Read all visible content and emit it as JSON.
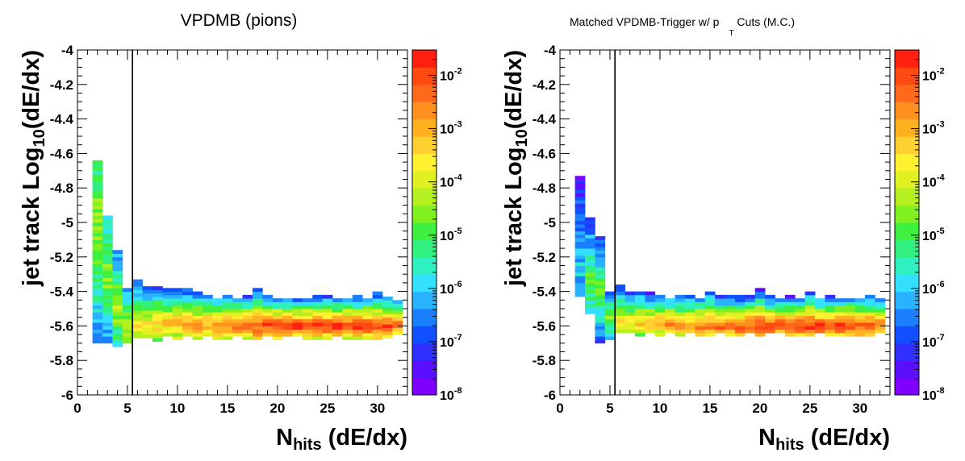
{
  "chart_data": [
    {
      "type": "heatmap",
      "title": "VPDMB (pions)",
      "xlabel": {
        "main": "N",
        "sub": "hits",
        "rest": " (dE/dx)"
      },
      "ylabel": {
        "main": "jet track Log",
        "sub": "10",
        "rest": "(dE/dx)"
      },
      "xlim": [
        0,
        33
      ],
      "ylim": [
        -6,
        -4
      ],
      "x_ticks": [
        "0",
        "5",
        "10",
        "15",
        "20",
        "25",
        "30"
      ],
      "y_ticks": [
        "-6",
        "-5.8",
        "-5.6",
        "-5.4",
        "-5.2",
        "-5",
        "-4.8",
        "-4.6",
        "-4.4",
        "-4.2",
        "-4"
      ],
      "z_scale": "log",
      "z_range": [
        1e-08,
        0.03
      ],
      "colorbar_labels": [
        {
          "base": "10",
          "exp": "-2"
        },
        {
          "base": "10",
          "exp": "-3"
        },
        {
          "base": "10",
          "exp": "-4"
        },
        {
          "base": "10",
          "exp": "-5"
        },
        {
          "base": "10",
          "exp": "-6"
        },
        {
          "base": "10",
          "exp": "-7"
        },
        {
          "base": "10",
          "exp": "-8"
        }
      ],
      "cut_line_x": 5.5,
      "columns": [
        {
          "x": 2,
          "ymin": -5.72,
          "ymax": -4.62,
          "peak_y": -5.0,
          "peak_log": -4.3,
          "low_log": -6.6
        },
        {
          "x": 3,
          "ymin": -5.72,
          "ymax": -4.96,
          "peak_y": -5.3,
          "peak_log": -4.4,
          "low_log": -6.6
        },
        {
          "x": 4,
          "ymin": -5.72,
          "ymax": -5.14,
          "peak_y": -5.5,
          "peak_log": -4.1,
          "low_log": -6.8
        },
        {
          "x": 5,
          "ymin": -5.72,
          "ymax": -5.36,
          "peak_y": -5.6,
          "peak_log": -3.9,
          "low_log": -6.8
        },
        {
          "x": 6,
          "ymin": -5.69,
          "ymax": -5.34,
          "peak_y": -5.6,
          "peak_log": -3.7,
          "low_log": -6.8
        },
        {
          "x": 7,
          "ymin": -5.69,
          "ymax": -5.35,
          "peak_y": -5.6,
          "peak_log": -3.5,
          "low_log": -6.9
        },
        {
          "x": 8,
          "ymin": -5.69,
          "ymax": -5.36,
          "peak_y": -5.59,
          "peak_log": -3.2,
          "low_log": -7.0
        },
        {
          "x": 9,
          "ymin": -5.68,
          "ymax": -5.37,
          "peak_y": -5.59,
          "peak_log": -3.1,
          "low_log": -7.0
        },
        {
          "x": 10,
          "ymin": -5.68,
          "ymax": -5.37,
          "peak_y": -5.59,
          "peak_log": -2.9,
          "low_log": -7.1
        },
        {
          "x": 11,
          "ymin": -5.68,
          "ymax": -5.38,
          "peak_y": -5.59,
          "peak_log": -2.75,
          "low_log": -7.2
        },
        {
          "x": 12,
          "ymin": -5.68,
          "ymax": -5.38,
          "peak_y": -5.6,
          "peak_log": -2.65,
          "low_log": -7.2
        },
        {
          "x": 13,
          "ymin": -5.68,
          "ymax": -5.4,
          "peak_y": -5.6,
          "peak_log": -2.55,
          "low_log": -7.2
        },
        {
          "x": 14,
          "ymin": -5.68,
          "ymax": -5.41,
          "peak_y": -5.6,
          "peak_log": -2.45,
          "low_log": -7.2
        },
        {
          "x": 15,
          "ymin": -5.68,
          "ymax": -5.41,
          "peak_y": -5.6,
          "peak_log": -2.3,
          "low_log": -7.2
        },
        {
          "x": 16,
          "ymin": -5.68,
          "ymax": -5.41,
          "peak_y": -5.6,
          "peak_log": -2.2,
          "low_log": -7.2
        },
        {
          "x": 17,
          "ymin": -5.68,
          "ymax": -5.42,
          "peak_y": -5.6,
          "peak_log": -2.1,
          "low_log": -7.2
        },
        {
          "x": 18,
          "ymin": -5.68,
          "ymax": -5.37,
          "peak_y": -5.6,
          "peak_log": -2.0,
          "low_log": -7.2
        },
        {
          "x": 19,
          "ymin": -5.68,
          "ymax": -5.42,
          "peak_y": -5.6,
          "peak_log": -1.9,
          "low_log": -7.2
        },
        {
          "x": 20,
          "ymin": -5.68,
          "ymax": -5.42,
          "peak_y": -5.6,
          "peak_log": -1.85,
          "low_log": -7.2
        },
        {
          "x": 21,
          "ymin": -5.68,
          "ymax": -5.42,
          "peak_y": -5.6,
          "peak_log": -1.8,
          "low_log": -7.2
        },
        {
          "x": 22,
          "ymin": -5.68,
          "ymax": -5.42,
          "peak_y": -5.6,
          "peak_log": -1.75,
          "low_log": -7.2
        },
        {
          "x": 23,
          "ymin": -5.68,
          "ymax": -5.42,
          "peak_y": -5.6,
          "peak_log": -1.75,
          "low_log": -7.2
        },
        {
          "x": 24,
          "ymin": -5.68,
          "ymax": -5.42,
          "peak_y": -5.6,
          "peak_log": -1.7,
          "low_log": -7.2
        },
        {
          "x": 25,
          "ymin": -5.68,
          "ymax": -5.42,
          "peak_y": -5.6,
          "peak_log": -1.7,
          "low_log": -7.2
        },
        {
          "x": 26,
          "ymin": -5.68,
          "ymax": -5.42,
          "peak_y": -5.6,
          "peak_log": -1.7,
          "low_log": -7.2
        },
        {
          "x": 27,
          "ymin": -5.68,
          "ymax": -5.42,
          "peak_y": -5.6,
          "peak_log": -1.7,
          "low_log": -7.2
        },
        {
          "x": 28,
          "ymin": -5.68,
          "ymax": -5.42,
          "peak_y": -5.6,
          "peak_log": -1.75,
          "low_log": -7.2
        },
        {
          "x": 29,
          "ymin": -5.68,
          "ymax": -5.42,
          "peak_y": -5.6,
          "peak_log": -1.75,
          "low_log": -7.2
        },
        {
          "x": 30,
          "ymin": -5.68,
          "ymax": -5.4,
          "peak_y": -5.6,
          "peak_log": -1.85,
          "low_log": -7.2
        },
        {
          "x": 31,
          "ymin": -5.67,
          "ymax": -5.42,
          "peak_y": -5.6,
          "peak_log": -2.0,
          "low_log": -7.2
        },
        {
          "x": 32,
          "ymin": -5.67,
          "ymax": -5.43,
          "peak_y": -5.6,
          "peak_log": -2.3,
          "low_log": -7.2
        }
      ]
    },
    {
      "type": "heatmap",
      "title": {
        "prefix": "Matched VPDMB-Trigger w/ p",
        "sub": "T",
        "suffix": " Cuts (M.C.)"
      },
      "xlabel": {
        "main": "N",
        "sub": "hits",
        "rest": " (dE/dx)"
      },
      "ylabel": {
        "main": "jet track Log",
        "sub": "10",
        "rest": "(dE/dx)"
      },
      "xlim": [
        0,
        33
      ],
      "ylim": [
        -6,
        -4
      ],
      "x_ticks": [
        "0",
        "5",
        "10",
        "15",
        "20",
        "25",
        "30"
      ],
      "y_ticks": [
        "-6",
        "-5.8",
        "-5.6",
        "-5.4",
        "-5.2",
        "-5",
        "-4.8",
        "-4.6",
        "-4.4",
        "-4.2",
        "-4"
      ],
      "z_scale": "log",
      "z_range": [
        1e-08,
        0.03
      ],
      "colorbar_labels": [
        {
          "base": "10",
          "exp": "-2"
        },
        {
          "base": "10",
          "exp": "-3"
        },
        {
          "base": "10",
          "exp": "-4"
        },
        {
          "base": "10",
          "exp": "-5"
        },
        {
          "base": "10",
          "exp": "-6"
        },
        {
          "base": "10",
          "exp": "-7"
        },
        {
          "base": "10",
          "exp": "-8"
        }
      ],
      "cut_line_x": 5.5,
      "columns": [
        {
          "x": 2,
          "ymin": -5.45,
          "ymax": -4.74,
          "peak_y": -5.3,
          "peak_log": -6.0,
          "low_log": -7.3
        },
        {
          "x": 3,
          "ymin": -5.55,
          "ymax": -4.96,
          "peak_y": -5.35,
          "peak_log": -4.8,
          "low_log": -7.2
        },
        {
          "x": 4,
          "ymin": -5.7,
          "ymax": -5.08,
          "peak_y": -5.4,
          "peak_log": -4.5,
          "low_log": -7.2
        },
        {
          "x": 5,
          "ymin": -5.7,
          "ymax": -5.38,
          "peak_y": -5.55,
          "peak_log": -4.2,
          "low_log": -7.3
        },
        {
          "x": 6,
          "ymin": -5.66,
          "ymax": -5.36,
          "peak_y": -5.58,
          "peak_log": -3.6,
          "low_log": -7.0
        },
        {
          "x": 7,
          "ymin": -5.66,
          "ymax": -5.4,
          "peak_y": -5.58,
          "peak_log": -3.4,
          "low_log": -7.1
        },
        {
          "x": 8,
          "ymin": -5.66,
          "ymax": -5.4,
          "peak_y": -5.58,
          "peak_log": -3.2,
          "low_log": -7.1
        },
        {
          "x": 9,
          "ymin": -5.66,
          "ymax": -5.41,
          "peak_y": -5.59,
          "peak_log": -3.0,
          "low_log": -7.1
        },
        {
          "x": 10,
          "ymin": -5.66,
          "ymax": -5.41,
          "peak_y": -5.59,
          "peak_log": -2.85,
          "low_log": -7.1
        },
        {
          "x": 11,
          "ymin": -5.66,
          "ymax": -5.42,
          "peak_y": -5.59,
          "peak_log": -2.7,
          "low_log": -7.1
        },
        {
          "x": 12,
          "ymin": -5.66,
          "ymax": -5.42,
          "peak_y": -5.6,
          "peak_log": -2.6,
          "low_log": -7.1
        },
        {
          "x": 13,
          "ymin": -5.66,
          "ymax": -5.42,
          "peak_y": -5.6,
          "peak_log": -2.5,
          "low_log": -7.1
        },
        {
          "x": 14,
          "ymin": -5.66,
          "ymax": -5.42,
          "peak_y": -5.6,
          "peak_log": -2.4,
          "low_log": -7.1
        },
        {
          "x": 15,
          "ymin": -5.66,
          "ymax": -5.4,
          "peak_y": -5.6,
          "peak_log": -2.3,
          "low_log": -7.1
        },
        {
          "x": 16,
          "ymin": -5.66,
          "ymax": -5.43,
          "peak_y": -5.6,
          "peak_log": -2.2,
          "low_log": -7.1
        },
        {
          "x": 17,
          "ymin": -5.66,
          "ymax": -5.43,
          "peak_y": -5.6,
          "peak_log": -2.1,
          "low_log": -7.1
        },
        {
          "x": 18,
          "ymin": -5.66,
          "ymax": -5.43,
          "peak_y": -5.6,
          "peak_log": -2.0,
          "low_log": -7.1
        },
        {
          "x": 19,
          "ymin": -5.66,
          "ymax": -5.43,
          "peak_y": -5.6,
          "peak_log": -1.95,
          "low_log": -7.1
        },
        {
          "x": 20,
          "ymin": -5.66,
          "ymax": -5.39,
          "peak_y": -5.6,
          "peak_log": -1.9,
          "low_log": -7.1
        },
        {
          "x": 21,
          "ymin": -5.66,
          "ymax": -5.43,
          "peak_y": -5.6,
          "peak_log": -1.85,
          "low_log": -7.1
        },
        {
          "x": 22,
          "ymin": -5.66,
          "ymax": -5.43,
          "peak_y": -5.6,
          "peak_log": -1.8,
          "low_log": -7.1
        },
        {
          "x": 23,
          "ymin": -5.66,
          "ymax": -5.43,
          "peak_y": -5.6,
          "peak_log": -1.8,
          "low_log": -7.1
        },
        {
          "x": 24,
          "ymin": -5.66,
          "ymax": -5.43,
          "peak_y": -5.6,
          "peak_log": -1.75,
          "low_log": -7.1
        },
        {
          "x": 25,
          "ymin": -5.66,
          "ymax": -5.4,
          "peak_y": -5.6,
          "peak_log": -1.75,
          "low_log": -7.1
        },
        {
          "x": 26,
          "ymin": -5.66,
          "ymax": -5.43,
          "peak_y": -5.6,
          "peak_log": -1.75,
          "low_log": -7.1
        },
        {
          "x": 27,
          "ymin": -5.66,
          "ymax": -5.43,
          "peak_y": -5.6,
          "peak_log": -1.75,
          "low_log": -7.1
        },
        {
          "x": 28,
          "ymin": -5.66,
          "ymax": -5.42,
          "peak_y": -5.6,
          "peak_log": -1.75,
          "low_log": -7.1
        },
        {
          "x": 29,
          "ymin": -5.66,
          "ymax": -5.42,
          "peak_y": -5.6,
          "peak_log": -1.8,
          "low_log": -7.1
        },
        {
          "x": 30,
          "ymin": -5.66,
          "ymax": -5.42,
          "peak_y": -5.6,
          "peak_log": -1.9,
          "low_log": -7.1
        },
        {
          "x": 31,
          "ymin": -5.66,
          "ymax": -5.42,
          "peak_y": -5.6,
          "peak_log": -2.1,
          "low_log": -7.1
        },
        {
          "x": 32,
          "ymin": -5.66,
          "ymax": -5.43,
          "peak_y": -5.6,
          "peak_log": -2.4,
          "low_log": -7.1
        }
      ]
    }
  ]
}
